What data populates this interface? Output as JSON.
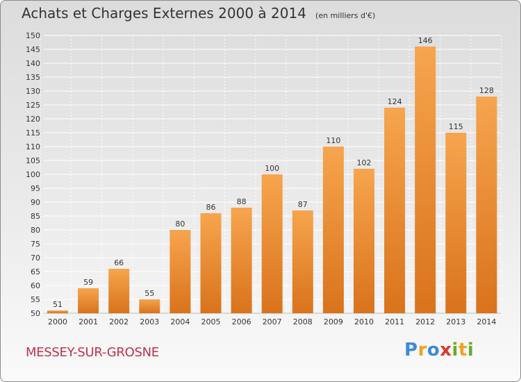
{
  "header": {
    "title": "Achats et Charges Externes 2000 à 2014",
    "unit": "(en milliers d'€)"
  },
  "footer": {
    "commune": "MESSEY-SUR-GROSNE",
    "logo_text": "Proxiti",
    "logo_letters": [
      {
        "ch": "P",
        "color": "#3d8ad6"
      },
      {
        "ch": "r",
        "color": "#f0a020"
      },
      {
        "ch": "o",
        "color": "#3d8ad6"
      },
      {
        "ch": "x",
        "color": "#d83a2e"
      },
      {
        "ch": "i",
        "color": "#6aab2c"
      },
      {
        "ch": "t",
        "color": "#f0a020"
      },
      {
        "ch": "i",
        "color": "#6aab2c"
      }
    ]
  },
  "colors": {
    "bar_top": "#f6a54e",
    "bar_bottom": "#d9731c",
    "grid": "#ffffff",
    "text": "#333333",
    "commune": "#c0304a"
  },
  "chart_data": {
    "type": "bar",
    "title": "Achats et Charges Externes 2000 à 2014",
    "subtitle": "(en milliers d'€)",
    "xlabel": "",
    "ylabel": "",
    "categories": [
      "2000",
      "2001",
      "2002",
      "2003",
      "2004",
      "2005",
      "2006",
      "2007",
      "2008",
      "2009",
      "2010",
      "2011",
      "2012",
      "2013",
      "2014"
    ],
    "values": [
      51,
      59,
      66,
      55,
      80,
      86,
      88,
      100,
      87,
      110,
      102,
      124,
      146,
      115,
      128
    ],
    "ylim": [
      50,
      150
    ],
    "yticks": [
      50,
      55,
      60,
      65,
      70,
      75,
      80,
      85,
      90,
      95,
      100,
      105,
      110,
      115,
      120,
      125,
      130,
      135,
      140,
      145,
      150
    ],
    "grid": true,
    "data_labels": true,
    "legend": "none"
  }
}
